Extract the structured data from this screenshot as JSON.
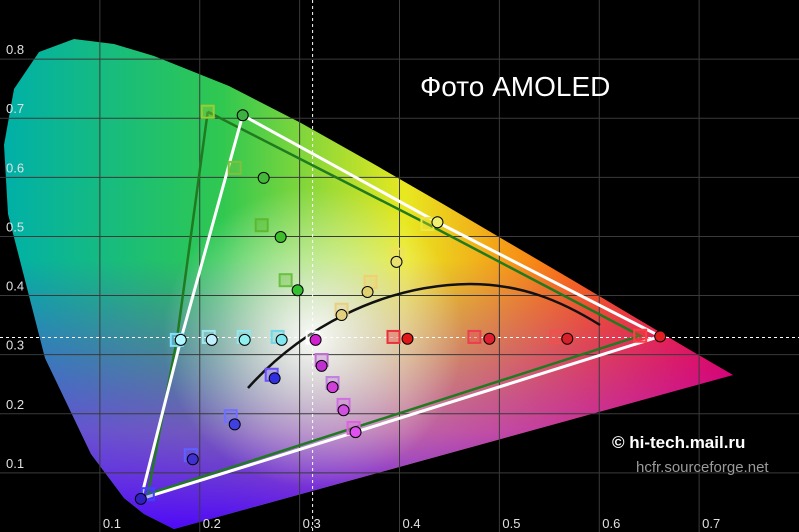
{
  "chart_data": {
    "type": "scatter",
    "title": "Фото AMOLED",
    "annotations": [
      "© hi-tech.mail.ru",
      "hcfr.sourceforge.net"
    ],
    "xlim": [
      0,
      0.8
    ],
    "ylim": [
      0,
      0.9
    ],
    "xticks": [
      0.1,
      0.2,
      0.3,
      0.4,
      0.5,
      0.6,
      0.7
    ],
    "yticks": [
      0.1,
      0.2,
      0.3,
      0.4,
      0.5,
      0.6,
      0.7,
      0.8
    ],
    "grid": true,
    "series": [
      {
        "marker": "square",
        "x": [
          0.208,
          0.235,
          0.262,
          0.286,
          0.428,
          0.398,
          0.371,
          0.342,
          0.641,
          0.557,
          0.475,
          0.394,
          0.354,
          0.344,
          0.333,
          0.322,
          0.148,
          0.191,
          0.231,
          0.272,
          0.177,
          0.209,
          0.244,
          0.278,
          0.313
        ],
        "values": [
          0.711,
          0.616,
          0.519,
          0.426,
          0.521,
          0.469,
          0.423,
          0.376,
          0.332,
          0.33,
          0.33,
          0.33,
          0.176,
          0.215,
          0.252,
          0.291,
          0.064,
          0.13,
          0.196,
          0.266,
          0.325,
          0.33,
          0.33,
          0.33,
          0.329
        ],
        "colors": [
          "#9acd32",
          "#7fc040",
          "#5db830",
          "#6ac040",
          "#e8e840",
          "#f0e060",
          "#f0d070",
          "#e8d080",
          "#ff4040",
          "#f05050",
          "#e84050",
          "#e83040",
          "#e060e0",
          "#d070e0",
          "#c080e0",
          "#c070d0",
          "#4040ff",
          "#6060ff",
          "#7070ff",
          "#6a50ff",
          "#80e0ff",
          "#a0e8f0",
          "#90e8f0",
          "#70d8e8",
          "#ffffff"
        ],
        "polygon": [
          0,
          4,
          8,
          12,
          16,
          20,
          0
        ],
        "polygon_color": "#207a20"
      },
      {
        "marker": "circle",
        "x": [
          0.243,
          0.264,
          0.281,
          0.298,
          0.438,
          0.397,
          0.368,
          0.342,
          0.661,
          0.568,
          0.49,
          0.408,
          0.356,
          0.344,
          0.333,
          0.322,
          0.141,
          0.193,
          0.235,
          0.275,
          0.181,
          0.212,
          0.245,
          0.282,
          0.316
        ],
        "values": [
          0.705,
          0.599,
          0.499,
          0.409,
          0.524,
          0.457,
          0.406,
          0.367,
          0.331,
          0.327,
          0.327,
          0.327,
          0.169,
          0.206,
          0.245,
          0.281,
          0.056,
          0.123,
          0.182,
          0.26,
          0.325,
          0.325,
          0.325,
          0.325,
          0.325
        ],
        "colors": [
          "#3cb043",
          "#44b83a",
          "#3cbf2a",
          "#30c030",
          "#f0f070",
          "#e8e070",
          "#e0d070",
          "#e0d080",
          "#e02020",
          "#d82028",
          "#e02030",
          "#e01818",
          "#e050f0",
          "#d050e0",
          "#d040d8",
          "#c030d0",
          "#3020c0",
          "#4030d0",
          "#4040e0",
          "#3030e0",
          "#b0f8ff",
          "#c0f0ff",
          "#90f0f0",
          "#80e8f0",
          "#d020d0"
        ],
        "polygon": [
          0,
          4,
          8,
          12,
          16,
          20,
          0
        ],
        "polygon_color": "#ffffff"
      }
    ]
  }
}
